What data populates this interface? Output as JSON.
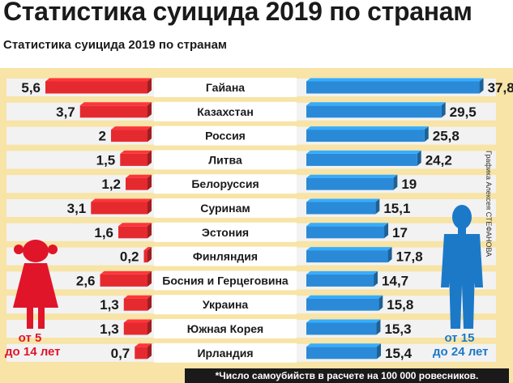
{
  "page": {
    "title": "Статистика суицида 2019 по странам",
    "subtitle": "Статистика суицида 2019 по странам",
    "footnote": "*Число самоубийств в расчете на 100 000 ровесников.",
    "credit": "Графика Алексея СТЕФАНОВА",
    "left_age_line1": "от 5",
    "left_age_line2": "до 14 лет",
    "right_age_line1": "от 15",
    "right_age_line2": "до 24 лет"
  },
  "colors": {
    "background_panel": "#f7e4a6",
    "left_bar": "#e52a2f",
    "right_bar": "#2a8ad8",
    "row_band": "#f2f2f2",
    "left_figure": "#e0152a",
    "right_figure": "#1c79c8"
  },
  "icons": [
    "girl-silhouette-icon",
    "young-man-silhouette-icon"
  ],
  "chart_data": {
    "type": "bar",
    "categories": [
      "Гайана",
      "Казахстан",
      "Россия",
      "Литва",
      "Белоруссия",
      "Суринам",
      "Эстония",
      "Финляндия",
      "Босния и Герцеговина",
      "Украина",
      "Южная Корея",
      "Ирландия"
    ],
    "series": [
      {
        "name": "от 5 до 14 лет",
        "values": [
          5.6,
          3.7,
          2,
          1.5,
          1.2,
          3.1,
          1.6,
          0.2,
          2.6,
          1.3,
          1.3,
          0.7
        ],
        "labels": [
          "5,6",
          "3,7",
          "2",
          "1,5",
          "1,2",
          "3,1",
          "1,6",
          "0,2",
          "2,6",
          "1,3",
          "1,3",
          "0,7"
        ]
      },
      {
        "name": "от 15 до 24 лет",
        "values": [
          37.8,
          29.5,
          25.8,
          24.2,
          19,
          15.1,
          17,
          17.8,
          14.7,
          15.8,
          15.3,
          15.4
        ],
        "labels": [
          "37,8",
          "29,5",
          "25,8",
          "24,2",
          "19",
          "15,1",
          "17",
          "17,8",
          "14,7",
          "15,8",
          "15,3",
          "15,4"
        ]
      }
    ],
    "title": "Статистика суицида 2019 по странам",
    "layout": "back-to-back horizontal bars",
    "grid": false
  }
}
